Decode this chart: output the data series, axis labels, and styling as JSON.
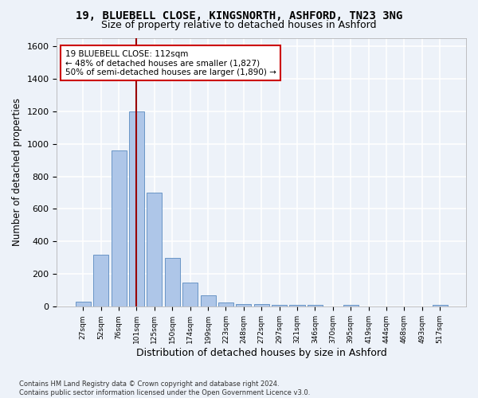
{
  "title1": "19, BLUEBELL CLOSE, KINGSNORTH, ASHFORD, TN23 3NG",
  "title2": "Size of property relative to detached houses in Ashford",
  "xlabel": "Distribution of detached houses by size in Ashford",
  "ylabel": "Number of detached properties",
  "footnote": "Contains HM Land Registry data © Crown copyright and database right 2024.\nContains public sector information licensed under the Open Government Licence v3.0.",
  "bar_labels": [
    "27sqm",
    "52sqm",
    "76sqm",
    "101sqm",
    "125sqm",
    "150sqm",
    "174sqm",
    "199sqm",
    "223sqm",
    "248sqm",
    "272sqm",
    "297sqm",
    "321sqm",
    "346sqm",
    "370sqm",
    "395sqm",
    "419sqm",
    "444sqm",
    "468sqm",
    "493sqm",
    "517sqm"
  ],
  "bar_values": [
    30,
    320,
    960,
    1200,
    700,
    300,
    150,
    70,
    28,
    18,
    15,
    13,
    10,
    10,
    0,
    12,
    0,
    0,
    0,
    0,
    12
  ],
  "bar_color": "#aec6e8",
  "bar_edge_color": "#5a8abf",
  "vline_x": 3.0,
  "vline_color": "#990000",
  "annotation_text": "19 BLUEBELL CLOSE: 112sqm\n← 48% of detached houses are smaller (1,827)\n50% of semi-detached houses are larger (1,890) →",
  "annotation_box_color": "#ffffff",
  "annotation_box_edge": "#cc0000",
  "ylim": [
    0,
    1650
  ],
  "yticks": [
    0,
    200,
    400,
    600,
    800,
    1000,
    1200,
    1400,
    1600
  ],
  "bg_color": "#edf2f9",
  "plot_bg_color": "#edf2f9",
  "grid_color": "#ffffff",
  "title1_fontsize": 10,
  "title2_fontsize": 9,
  "xlabel_fontsize": 9,
  "ylabel_fontsize": 8.5
}
